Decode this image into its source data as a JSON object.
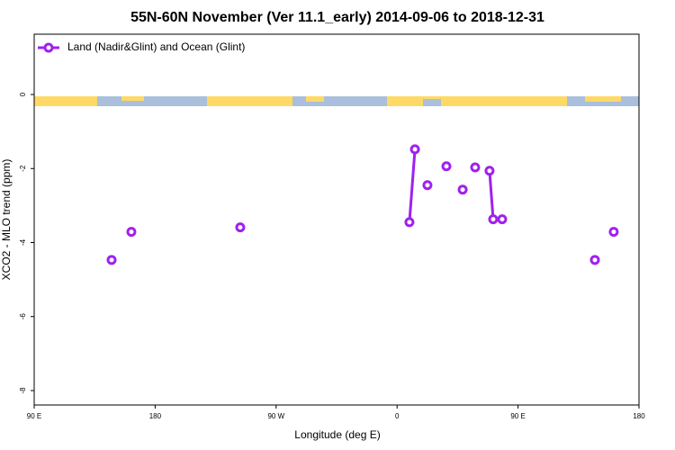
{
  "chart_data": {
    "type": "line",
    "title": "55N-60N November (Ver 11.1_early)   2014-09-06 to 2018-12-31",
    "x_label": "Longitude (deg E)",
    "y_label": "XCO2 - MLO trend (ppm)",
    "x": [
      147.6,
      null,
      162.3,
      null,
      243.3,
      null,
      369.2,
      373.3,
      null,
      382.6,
      null,
      396.7,
      null,
      408.8,
      null,
      418.1,
      null,
      428.8,
      431.5,
      438.2,
      null,
      507.2,
      null,
      521.2
    ],
    "series": [
      {
        "name": "Land (Nadir&Glint) and Ocean (Glint)",
        "color": "#a020f0",
        "values": [
          -4.47,
          null,
          -3.71,
          null,
          -3.59,
          null,
          -3.45,
          -1.48,
          null,
          -2.45,
          null,
          -1.94,
          null,
          -2.57,
          null,
          -1.97,
          null,
          -2.06,
          -3.37,
          -3.37,
          null,
          -4.47,
          null,
          -3.71
        ]
      }
    ],
    "xlim": [
      90,
      540
    ],
    "xticks": [
      {
        "value": 90,
        "label": "90 E"
      },
      {
        "value": 180,
        "label": "180"
      },
      {
        "value": 270,
        "label": "90 W"
      },
      {
        "value": 360,
        "label": "0"
      },
      {
        "value": 450,
        "label": "90 E"
      },
      {
        "value": 540,
        "label": "180"
      }
    ],
    "ylim": [
      -8.39,
      1.63
    ],
    "yticks": [
      0,
      -2,
      -4,
      -6,
      -8
    ],
    "legend": "top-left"
  }
}
